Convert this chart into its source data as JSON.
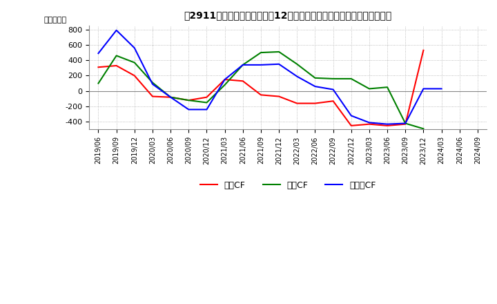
{
  "title": "　2911、キャッシュフローの12か月移動合計の対前年同期増減額の推移",
  "ylabel": "（百万円）",
  "ylim": [
    -500,
    850
  ],
  "yticks": [
    -400,
    -200,
    0,
    200,
    400,
    600,
    800
  ],
  "x_labels": [
    "2019/06",
    "2019/09",
    "2019/12",
    "2020/03",
    "2020/06",
    "2020/09",
    "2020/12",
    "2021/03",
    "2021/06",
    "2021/09",
    "2021/12",
    "2022/03",
    "2022/06",
    "2022/09",
    "2022/12",
    "2023/03",
    "2023/06",
    "2023/09",
    "2023/12",
    "2024/03",
    "2024/06",
    "2024/09"
  ],
  "series": {
    "営業CF": {
      "color": "#ff0000",
      "values": [
        310,
        330,
        200,
        -70,
        -80,
        -120,
        -80,
        150,
        130,
        -50,
        -70,
        -160,
        -160,
        -130,
        -450,
        -430,
        -450,
        -430,
        530,
        null,
        null,
        null
      ]
    },
    "投資CF": {
      "color": "#008000",
      "values": [
        100,
        460,
        370,
        110,
        -80,
        -120,
        -150,
        80,
        340,
        500,
        510,
        350,
        170,
        160,
        160,
        30,
        50,
        -420,
        -490,
        null,
        null,
        null
      ]
    },
    "フリーCF": {
      "color": "#0000ff",
      "values": [
        490,
        790,
        560,
        90,
        -80,
        -240,
        -240,
        150,
        340,
        340,
        350,
        190,
        60,
        20,
        -320,
        -410,
        -430,
        -420,
        30,
        30,
        null,
        null
      ]
    }
  },
  "legend_labels": [
    "営業CF",
    "投資CF",
    "フリーCF"
  ],
  "background_color": "#ffffff",
  "grid_color": "#aaaaaa"
}
